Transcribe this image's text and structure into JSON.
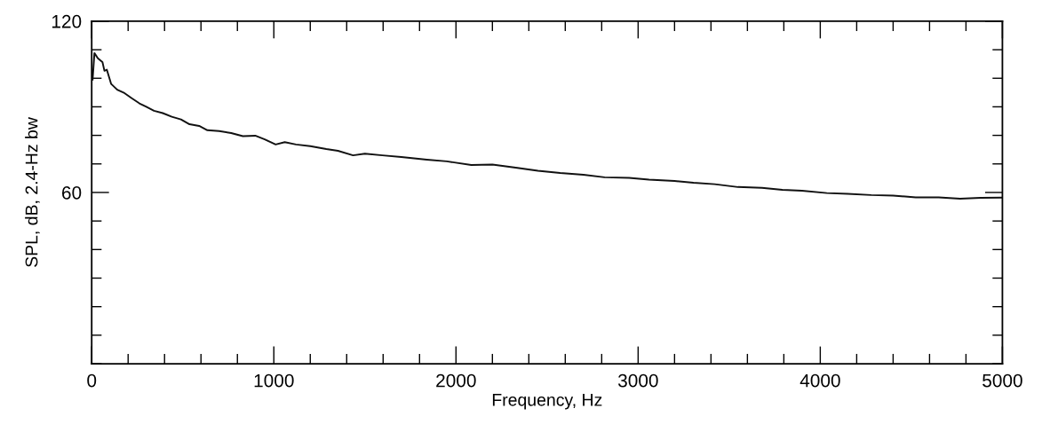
{
  "chart_data": {
    "type": "line",
    "xlabel": "Frequency, Hz",
    "ylabel": "SPL, dB, 2.4-Hz bw",
    "xlim": [
      0,
      5000
    ],
    "ylim": [
      0,
      120
    ],
    "xticks": [
      0,
      {
        "value": 200,
        "label": null
      },
      {
        "value": 400,
        "label": null
      },
      {
        "value": 600,
        "label": null
      },
      {
        "value": 800,
        "label": null
      },
      1000,
      {
        "value": 1200,
        "label": null
      },
      {
        "value": 1400,
        "label": null
      },
      {
        "value": 1600,
        "label": null
      },
      {
        "value": 1800,
        "label": null
      },
      2000,
      {
        "value": 2200,
        "label": null
      },
      {
        "value": 2400,
        "label": null
      },
      {
        "value": 2600,
        "label": null
      },
      {
        "value": 2800,
        "label": null
      },
      3000,
      {
        "value": 3200,
        "label": null
      },
      {
        "value": 3400,
        "label": null
      },
      {
        "value": 3600,
        "label": null
      },
      {
        "value": 3800,
        "label": null
      },
      4000,
      {
        "value": 4200,
        "label": null
      },
      {
        "value": 4400,
        "label": null
      },
      {
        "value": 4600,
        "label": null
      },
      {
        "value": 4800,
        "label": null
      },
      5000
    ],
    "yticks": [
      {
        "value": 0,
        "label": null
      },
      {
        "value": 10,
        "label": null
      },
      {
        "value": 20,
        "label": null
      },
      {
        "value": 30,
        "label": null
      },
      {
        "value": 40,
        "label": null
      },
      {
        "value": 50,
        "label": null
      },
      60,
      {
        "value": 70,
        "label": null
      },
      {
        "value": 80,
        "label": null
      },
      {
        "value": 90,
        "label": null
      },
      {
        "value": 100,
        "label": null
      },
      {
        "value": 110,
        "label": null
      },
      120
    ],
    "grid": false,
    "legend": false,
    "marker": "none",
    "line_style": "solid",
    "x": [
      5,
      15,
      34,
      59,
      70,
      83,
      107,
      140,
      180,
      220,
      262,
      300,
      342,
      390,
      440,
      490,
      537,
      590,
      635,
      700,
      766,
      830,
      898,
      950,
      1010,
      1060,
      1122,
      1200,
      1288,
      1352,
      1435,
      1500,
      1596,
      1700,
      1840,
      1950,
      2084,
      2200,
      2328,
      2450,
      2572,
      2700,
      2816,
      2950,
      3060,
      3200,
      3304,
      3420,
      3548,
      3680,
      3792,
      3900,
      4036,
      4150,
      4280,
      4400,
      4524,
      4650,
      4768,
      4880,
      5000
    ],
    "series": [
      {
        "color": "#111111",
        "values": [
          99.5,
          108.8,
          107,
          105.7,
          102.6,
          103,
          98,
          96,
          94.8,
          93,
          91.2,
          90,
          88.6,
          87.8,
          86.5,
          85.6,
          83.9,
          83.3,
          81.8,
          81.5,
          80.8,
          79.7,
          79.9,
          78.6,
          76.8,
          77.6,
          76.8,
          76.2,
          75.2,
          74.6,
          73,
          73.6,
          73,
          72.4,
          71.5,
          70.9,
          69.6,
          69.8,
          68.7,
          67.6,
          66.8,
          66.2,
          65.3,
          65.1,
          64.5,
          64.0,
          63.4,
          62.9,
          61.9,
          61.6,
          60.9,
          60.6,
          59.8,
          59.5,
          59.1,
          58.9,
          58.3,
          58.3,
          57.8,
          58.1,
          58.2
        ]
      }
    ]
  }
}
